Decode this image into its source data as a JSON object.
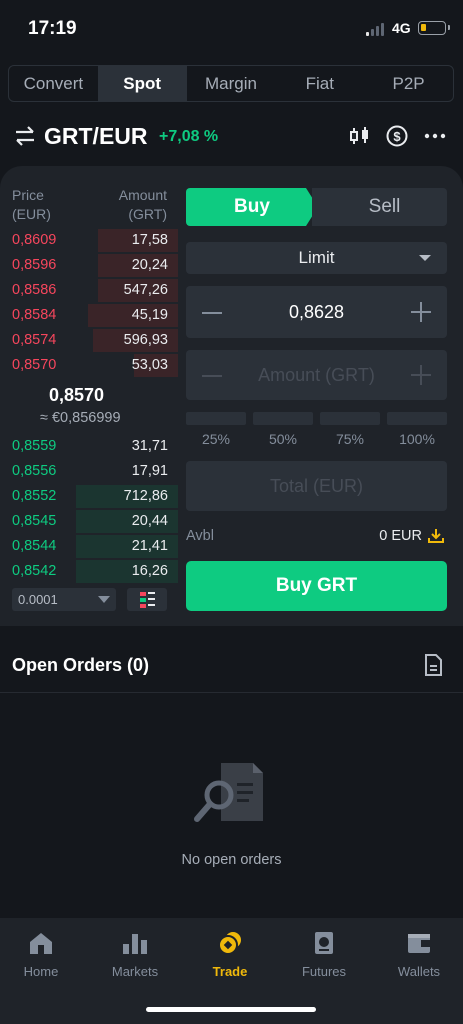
{
  "status": {
    "time": "17:19",
    "network": "4G"
  },
  "tabs": [
    {
      "label": "Convert",
      "active": false
    },
    {
      "label": "Spot",
      "active": true
    },
    {
      "label": "Margin",
      "active": false
    },
    {
      "label": "Fiat",
      "active": false
    },
    {
      "label": "P2P",
      "active": false
    }
  ],
  "pair": {
    "symbol": "GRT/EUR",
    "change": "+7,08 %"
  },
  "orderbook": {
    "price_header": [
      "Price",
      "(EUR)"
    ],
    "amount_header": [
      "Amount",
      "(GRT)"
    ],
    "asks": [
      {
        "price": "0,8609",
        "amount": "17,58",
        "depth": 0.47
      },
      {
        "price": "0,8596",
        "amount": "20,24",
        "depth": 0.47
      },
      {
        "price": "0,8586",
        "amount": "547,26",
        "depth": 0.47
      },
      {
        "price": "0,8584",
        "amount": "45,19",
        "depth": 0.53
      },
      {
        "price": "0,8574",
        "amount": "596,93",
        "depth": 0.5
      },
      {
        "price": "0,8570",
        "amount": "53,03",
        "depth": 0.26
      }
    ],
    "last_price": "0,8570",
    "last_price_fiat": "≈ €0,856999",
    "bids": [
      {
        "price": "0,8559",
        "amount": "31,71",
        "depth": 0.0
      },
      {
        "price": "0,8556",
        "amount": "17,91",
        "depth": 0.0
      },
      {
        "price": "0,8552",
        "amount": "712,86",
        "depth": 0.6
      },
      {
        "price": "0,8545",
        "amount": "20,44",
        "depth": 0.6
      },
      {
        "price": "0,8544",
        "amount": "21,41",
        "depth": 0.6
      },
      {
        "price": "0,8542",
        "amount": "16,26",
        "depth": 0.6
      }
    ],
    "precision": "0.0001"
  },
  "form": {
    "buy_label": "Buy",
    "sell_label": "Sell",
    "order_type": "Limit",
    "price_value": "0,8628",
    "amount_placeholder": "Amount (GRT)",
    "percentages": [
      "25%",
      "50%",
      "75%",
      "100%"
    ],
    "total_placeholder": "Total (EUR)",
    "avbl_label": "Avbl",
    "avbl_value": "0 EUR",
    "submit_label": "Buy GRT"
  },
  "open_orders": {
    "title": "Open Orders (0)",
    "empty_text": "No open orders"
  },
  "nav": [
    {
      "label": "Home",
      "icon": "home-icon",
      "active": false
    },
    {
      "label": "Markets",
      "icon": "markets-icon",
      "active": false
    },
    {
      "label": "Trade",
      "icon": "trade-icon",
      "active": true
    },
    {
      "label": "Futures",
      "icon": "futures-icon",
      "active": false
    },
    {
      "label": "Wallets",
      "icon": "wallets-icon",
      "active": false
    }
  ],
  "colors": {
    "buy": "#0ecb81",
    "sell": "#f6465d",
    "accent": "#f0b90b",
    "background": "#14171c",
    "panel": "#1f2329"
  }
}
